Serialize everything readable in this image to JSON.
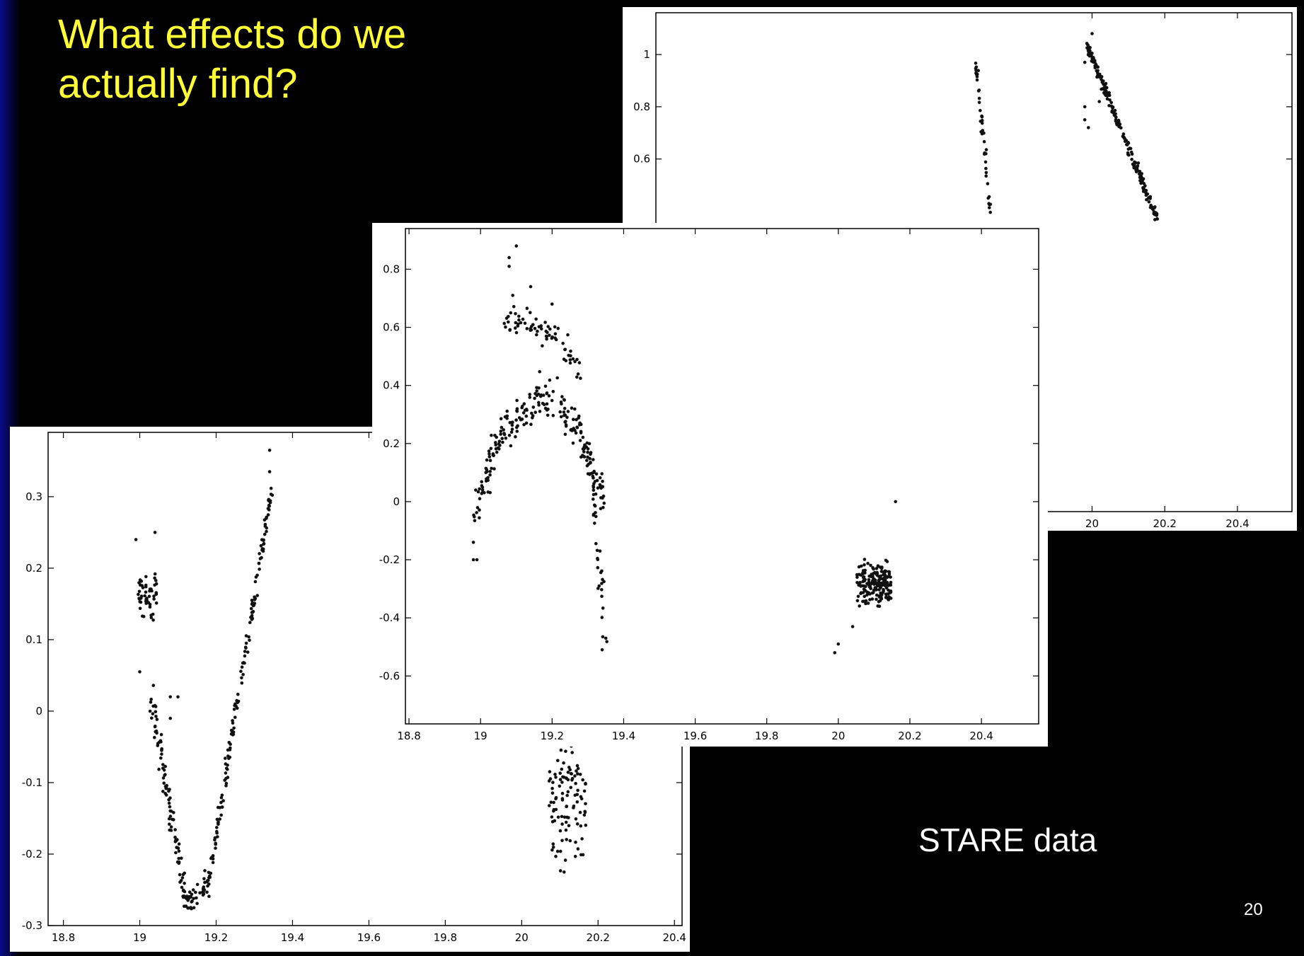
{
  "slide": {
    "title": "What effects do we actually find?",
    "caption": "STARE data",
    "page_number": "20",
    "title_color": "#ffff33"
  },
  "chart_data": [
    {
      "id": "back",
      "type": "scatter",
      "xlim": [
        18.8,
        20.55
      ],
      "ylim": [
        -0.75,
        1.16
      ],
      "xticks": [
        20,
        20.2,
        20.4
      ],
      "xtick_labels": [
        "20",
        "20.2",
        "20.4"
      ],
      "yticks": [
        0.6,
        0.8,
        1
      ],
      "ytick_labels": [
        "0.6",
        "0.8",
        "1"
      ],
      "segments": [
        {
          "x0": 19.68,
          "x1": 19.72,
          "y0": 0.98,
          "y1": 0.4,
          "n": 45,
          "spread": 0.02,
          "xjit": 0.004
        },
        {
          "x0": 19.985,
          "x1": 20.18,
          "y0": 1.04,
          "y1": 0.37,
          "n": 190,
          "spread": 0.025,
          "xjit": 0.004
        }
      ],
      "extra_points": [
        [
          19.98,
          0.8
        ],
        [
          19.98,
          0.75
        ],
        [
          19.99,
          0.72
        ],
        [
          20.0,
          1.08
        ],
        [
          20.02,
          0.82
        ],
        [
          19.98,
          0.97
        ]
      ]
    },
    {
      "id": "left",
      "type": "scatter",
      "xlim": [
        18.76,
        20.42
      ],
      "ylim": [
        -0.3,
        0.39
      ],
      "xticks": [
        18.8,
        19,
        19.2,
        19.4,
        19.6,
        19.8,
        20,
        20.2,
        20.4
      ],
      "xtick_labels": [
        "18.8",
        "19",
        "19.2",
        "19.4",
        "19.6",
        "19.8",
        "20",
        "20.2",
        "20.4"
      ],
      "yticks": [
        -0.3,
        -0.2,
        -0.1,
        0,
        0.1,
        0.2,
        0.3
      ],
      "ytick_labels": [
        "-0.3",
        "-0.2",
        "-0.1",
        "0",
        "0.1",
        "0.2",
        "0.3"
      ],
      "clusters": [
        {
          "cx": 19.02,
          "cy": 0.16,
          "sx": 0.02,
          "sy": 0.035,
          "n": 50
        },
        {
          "cx": 20.12,
          "cy": -0.12,
          "sx": 0.04,
          "sy": 0.09,
          "n": 110
        }
      ],
      "segments": [
        {
          "x0": 19.03,
          "x1": 19.12,
          "y0": 0.02,
          "y1": -0.27,
          "n": 95,
          "spread": 0.018,
          "xjit": 0.008
        },
        {
          "x0": 19.12,
          "x1": 19.18,
          "y0": -0.27,
          "y1": -0.24,
          "n": 40,
          "spread": 0.016,
          "xjit": 0.01
        },
        {
          "x0": 19.18,
          "x1": 19.345,
          "y0": -0.24,
          "y1": 0.31,
          "n": 155,
          "spread": 0.012,
          "xjit": 0.004
        }
      ],
      "extra_points": [
        [
          19.34,
          0.365
        ],
        [
          19.34,
          0.335
        ],
        [
          18.99,
          0.24
        ],
        [
          19.04,
          0.25
        ],
        [
          19.08,
          0.02
        ],
        [
          19.1,
          0.02
        ],
        [
          19.08,
          -0.01
        ],
        [
          19.0,
          0.055
        ]
      ]
    },
    {
      "id": "front",
      "type": "scatter",
      "xlim": [
        18.79,
        20.56
      ],
      "ylim": [
        -0.765,
        0.94
      ],
      "xticks": [
        18.8,
        19,
        19.2,
        19.4,
        19.6,
        19.8,
        20,
        20.2,
        20.4
      ],
      "xtick_labels": [
        "18.8",
        "19",
        "19.2",
        "19.4",
        "19.6",
        "19.8",
        "20",
        "20.2",
        "20.4"
      ],
      "yticks": [
        -0.6,
        -0.4,
        -0.2,
        0,
        0.2,
        0.4,
        0.6,
        0.8
      ],
      "ytick_labels": [
        "-0.6",
        "-0.4",
        "-0.2",
        "0",
        "0.2",
        "0.4",
        "0.6",
        "0.8"
      ],
      "arch_lower": {
        "x0": 18.98,
        "x1": 19.35,
        "peak_x": 19.17,
        "peak_y": 0.35,
        "base_y": -0.05,
        "n": 220,
        "spread": 0.07
      },
      "arch_upper": {
        "x0": 19.06,
        "x1": 19.28,
        "peak_x": 19.12,
        "peak_y": 0.62,
        "base_y": 0.45,
        "n": 70,
        "spread": 0.05
      },
      "segments": [
        {
          "x0": 19.3,
          "x1": 19.35,
          "y0": 0.2,
          "y1": -0.5,
          "n": 40,
          "spread": 0.03,
          "xjit": 0.008
        }
      ],
      "clusters": [
        {
          "cx": 20.1,
          "cy": -0.28,
          "sx": 0.04,
          "sy": 0.07,
          "n": 190
        }
      ],
      "extra_points": [
        [
          19.08,
          0.84
        ],
        [
          19.08,
          0.81
        ],
        [
          19.1,
          0.88
        ],
        [
          19.09,
          0.71
        ],
        [
          19.14,
          0.74
        ],
        [
          19.2,
          0.68
        ],
        [
          18.98,
          -0.2
        ],
        [
          18.99,
          -0.2
        ],
        [
          18.98,
          -0.14
        ],
        [
          20.16,
          0.0
        ],
        [
          19.99,
          -0.52
        ],
        [
          20.0,
          -0.49
        ],
        [
          20.04,
          -0.43
        ],
        [
          19.34,
          -0.51
        ],
        [
          19.35,
          -0.47
        ]
      ]
    }
  ]
}
